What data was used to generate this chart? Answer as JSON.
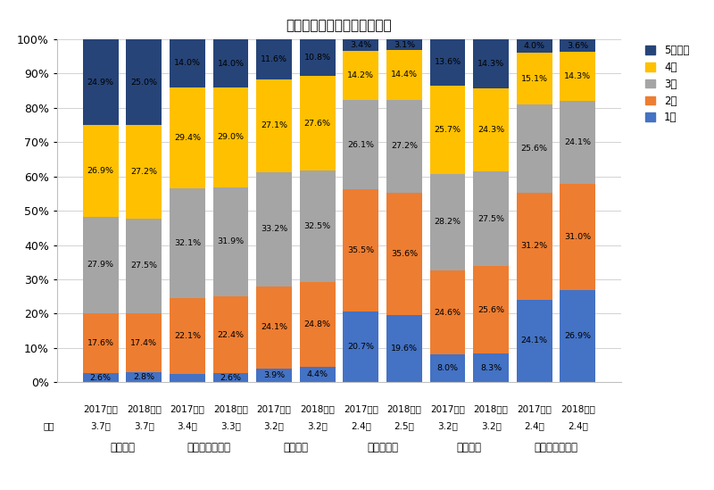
{
  "title": "家族数（融資区分・構成比）",
  "tick_labels_line1": [
    "2017年度",
    "2018年度",
    "2017年度",
    "2018年度",
    "2017年度",
    "2018年度",
    "2017年度",
    "2018年度",
    "2017年度",
    "2018年度",
    "2017年度",
    "2018年度"
  ],
  "tick_labels_line2": [
    "3.7人",
    "3.7人",
    "3.4人",
    "3.3人",
    "3.2人",
    "3.2人",
    "2.4人",
    "2.5人",
    "3.2人",
    "3.2人",
    "2.4人",
    "2.4人"
  ],
  "group_labels": [
    "注文住宅",
    "土地付注文住宅",
    "建売住宅",
    "マンション",
    "中古戸建",
    "中古マンション"
  ],
  "group_bar_centers": [
    0.5,
    2.5,
    4.5,
    6.5,
    8.5,
    10.5
  ],
  "heikin_label": "平均",
  "series": {
    "1人": [
      2.6,
      2.8,
      2.4,
      2.6,
      3.9,
      4.4,
      20.7,
      19.6,
      8.0,
      8.3,
      24.1,
      26.9
    ],
    "2人": [
      17.6,
      17.4,
      22.1,
      22.4,
      24.1,
      24.8,
      35.5,
      35.6,
      24.6,
      25.6,
      31.2,
      31.0
    ],
    "3人": [
      27.9,
      27.5,
      32.1,
      31.9,
      33.2,
      32.5,
      26.1,
      27.2,
      28.2,
      27.5,
      25.6,
      24.1
    ],
    "4人": [
      26.9,
      27.2,
      29.4,
      29.0,
      27.1,
      27.6,
      14.2,
      14.4,
      25.7,
      24.3,
      15.1,
      14.3
    ],
    "5人以上": [
      24.9,
      25.0,
      14.0,
      14.0,
      11.6,
      10.8,
      3.4,
      3.1,
      13.6,
      14.3,
      4.0,
      3.6
    ]
  },
  "series_order": [
    "1人",
    "2人",
    "3人",
    "4人",
    "5人以上"
  ],
  "series_colors": [
    "#4472C4",
    "#ED7D31",
    "#A5A5A5",
    "#FFC000",
    "#264478"
  ],
  "legend_labels": [
    "5人以上",
    "4人",
    "3人",
    "2人",
    "1人"
  ],
  "legend_colors": [
    "#264478",
    "#FFC000",
    "#A5A5A5",
    "#ED7D31",
    "#4472C4"
  ],
  "ylim": [
    0,
    100
  ],
  "yticks": [
    0,
    10,
    20,
    30,
    40,
    50,
    60,
    70,
    80,
    90,
    100
  ],
  "ytick_labels": [
    "0%",
    "10%",
    "20%",
    "30%",
    "40%",
    "50%",
    "60%",
    "70%",
    "80%",
    "90%",
    "100%"
  ]
}
